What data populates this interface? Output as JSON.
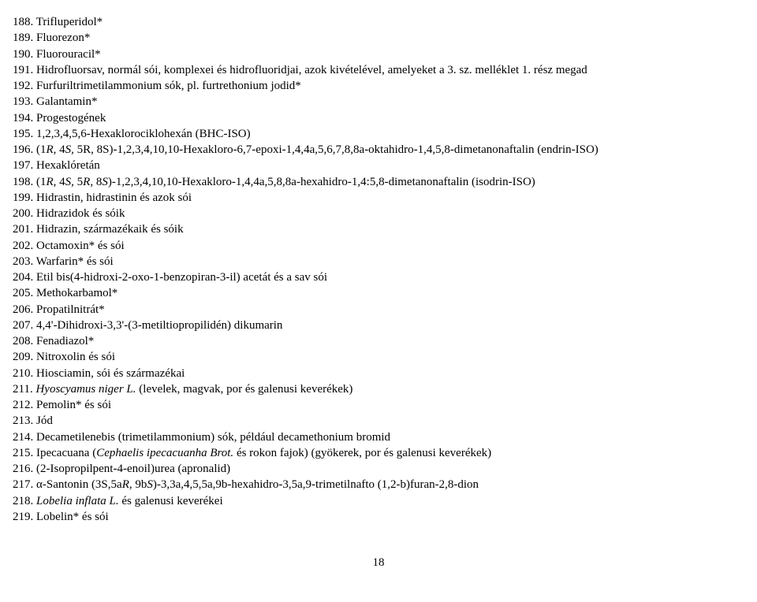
{
  "entries": [
    {
      "num": "188",
      "plain": "Trifluperidol*"
    },
    {
      "num": "189",
      "plain": "Fluorezon*"
    },
    {
      "num": "190",
      "plain": "Fluorouracil*"
    },
    {
      "num": "191",
      "plain": "Hidrofluorsav, normál sói, komplexei és hidrofluoridjai, azok kivételével, amelyeket a 3. sz. melléklet 1. rész megad"
    },
    {
      "num": "192",
      "plain": "Furfuriltrimetilammonium sók, pl. furtrethonium jodid*"
    },
    {
      "num": "193",
      "plain": "Galantamin*"
    },
    {
      "num": "194",
      "plain": "Progestogének"
    },
    {
      "num": "195",
      "plain": "1,2,3,4,5,6-Hexaklorociklohexán (BHC-ISO)"
    },
    {
      "num": "196",
      "pre": "(1",
      "it1": "R",
      "mid1": ", 4",
      "it2": "S",
      "mid2": ", 5R, 8S)-1,2,3,4,10,10-Hexakloro-6,7-epoxi-1,4,4a,5,6,7,8,8a-oktahidro-1,4,5,8-dimetanonaftalin (endrin-ISO)"
    },
    {
      "num": "197",
      "plain": "Hexaklóretán"
    },
    {
      "num": "198",
      "pre": "(1",
      "it1": "R",
      "mid1": ", 4",
      "it2": "S",
      "mid2": ", 5",
      "it3": "R",
      "mid3": ", 8",
      "it4": "S",
      "post": ")-1,2,3,4,10,10-Hexakloro-1,4,4a,5,8,8a-hexahidro-1,4:5,8-dimetanonaftalin (isodrin-ISO)"
    },
    {
      "num": "199",
      "plain": "Hidrastin, hidrastinin és azok sói"
    },
    {
      "num": "200",
      "plain": "Hidrazidok és sóik"
    },
    {
      "num": "201",
      "plain": "Hidrazin, származékaik és sóik"
    },
    {
      "num": "202",
      "plain": "Octamoxin* és sói"
    },
    {
      "num": "203",
      "plain": "Warfarin* és sói"
    },
    {
      "num": "204",
      "plain": "Etil bis(4-hidroxi-2-oxo-1-benzopiran-3-il) acetát és a sav sói"
    },
    {
      "num": "205",
      "plain": "Methokarbamol*"
    },
    {
      "num": "206",
      "plain": "Propatilnitrát*"
    },
    {
      "num": "207",
      "plain": "4,4'-Dihidroxi-3,3'-(3-metiltiopropilidén) dikumarin"
    },
    {
      "num": "208",
      "plain": "Fenadiazol*"
    },
    {
      "num": "209",
      "plain": "Nitroxolin és sói"
    },
    {
      "num": "210",
      "plain": "Hiosciamin, sói és származékai"
    },
    {
      "num": "211",
      "it_full": "Hyoscyamus niger L.",
      "rest": " (levelek, magvak, por és galenusi keverékek)"
    },
    {
      "num": "212",
      "plain": "Pemolin* és sói"
    },
    {
      "num": "213",
      "plain": "Jód"
    },
    {
      "num": "214",
      "plain": "Decametilenebis (trimetilammonium) sók, például decamethonium bromid"
    },
    {
      "num": "215",
      "plain_pre": "Ipecacuana (",
      "it_full": "Cephaelis ipecacuanha Brot.",
      "rest": " és rokon fajok) (gyökerek, por és galenusi keverékek)"
    },
    {
      "num": "216",
      "plain": "(2-Isopropilpent-4-enoil)urea (apronalid)"
    },
    {
      "num": "217",
      "plain_pre": "α-Santonin (3S,5a",
      "it1": "R",
      "mid1": ", 9b",
      "it2": "S",
      "post": ")-3,3a,4,5,5a,9b-hexahidro-3,5a,9-trimetilnafto (1,2-b)furan-2,8-dion"
    },
    {
      "num": "218",
      "it_full": "Lobelia inflata L.",
      "rest": " és galenusi keverékei"
    },
    {
      "num": "219",
      "plain": "Lobelin* és sói"
    }
  ],
  "page_number": "18"
}
